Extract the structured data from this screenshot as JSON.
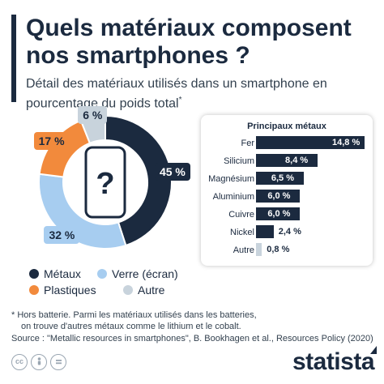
{
  "title": "Quels matériaux composent nos smartphones ?",
  "subtitle": "Détail des matériaux utilisés dans un smartphone en pourcentage du poids total",
  "subtitle_mark": "*",
  "panel": {
    "title": "Principaux métaux"
  },
  "legend": [
    {
      "label": "Métaux",
      "color": "#1b2a3f"
    },
    {
      "label": "Verre (écran)",
      "color": "#a7cdf0"
    },
    {
      "label": "Plastiques",
      "color": "#f28a3c"
    },
    {
      "label": "Autre",
      "color": "#c8d3dc"
    }
  ],
  "footnote": {
    "line1": "* Hors batterie. Parmi les matériaux utilisés dans les batteries,",
    "line2": "on trouve d'autres métaux comme le lithium et le cobalt."
  },
  "source": "Source : \"Metallic resources in smartphones\", B. Bookhagen et al., Resources Policy (2020)",
  "brand": "statista",
  "icons": [
    "cc-icon",
    "person-icon",
    "equals-icon",
    "smartphone-icon",
    "question-mark-icon"
  ],
  "chart_data": [
    {
      "type": "pie",
      "variant": "donut",
      "slices": [
        {
          "name": "Métaux",
          "value": 45,
          "label": "45 %",
          "color": "#1b2a3f"
        },
        {
          "name": "Verre (écran)",
          "value": 32,
          "label": "32 %",
          "color": "#a7cdf0"
        },
        {
          "name": "Plastiques",
          "value": 17,
          "label": "17 %",
          "color": "#f28a3c"
        },
        {
          "name": "Autre",
          "value": 6,
          "label": "6 %",
          "color": "#c8d3dc"
        }
      ],
      "center_symbol": "?"
    },
    {
      "type": "bar",
      "orientation": "horizontal",
      "title": "Principaux métaux",
      "categories": [
        "Fer",
        "Silicium",
        "Magnésium",
        "Aluminium",
        "Cuivre",
        "Nickel",
        "Autre"
      ],
      "values": [
        14.8,
        8.4,
        6.5,
        6.0,
        6.0,
        2.4,
        0.8
      ],
      "labels": [
        "14,8 %",
        "8,4 %",
        "6,5 %",
        "6,0 %",
        "6,0 %",
        "2,4 %",
        "0,8 %"
      ],
      "colors": [
        "#1b2a3f",
        "#1b2a3f",
        "#1b2a3f",
        "#1b2a3f",
        "#1b2a3f",
        "#1b2a3f",
        "#c8d3dc"
      ],
      "xlim": [
        0,
        14.8
      ]
    }
  ]
}
